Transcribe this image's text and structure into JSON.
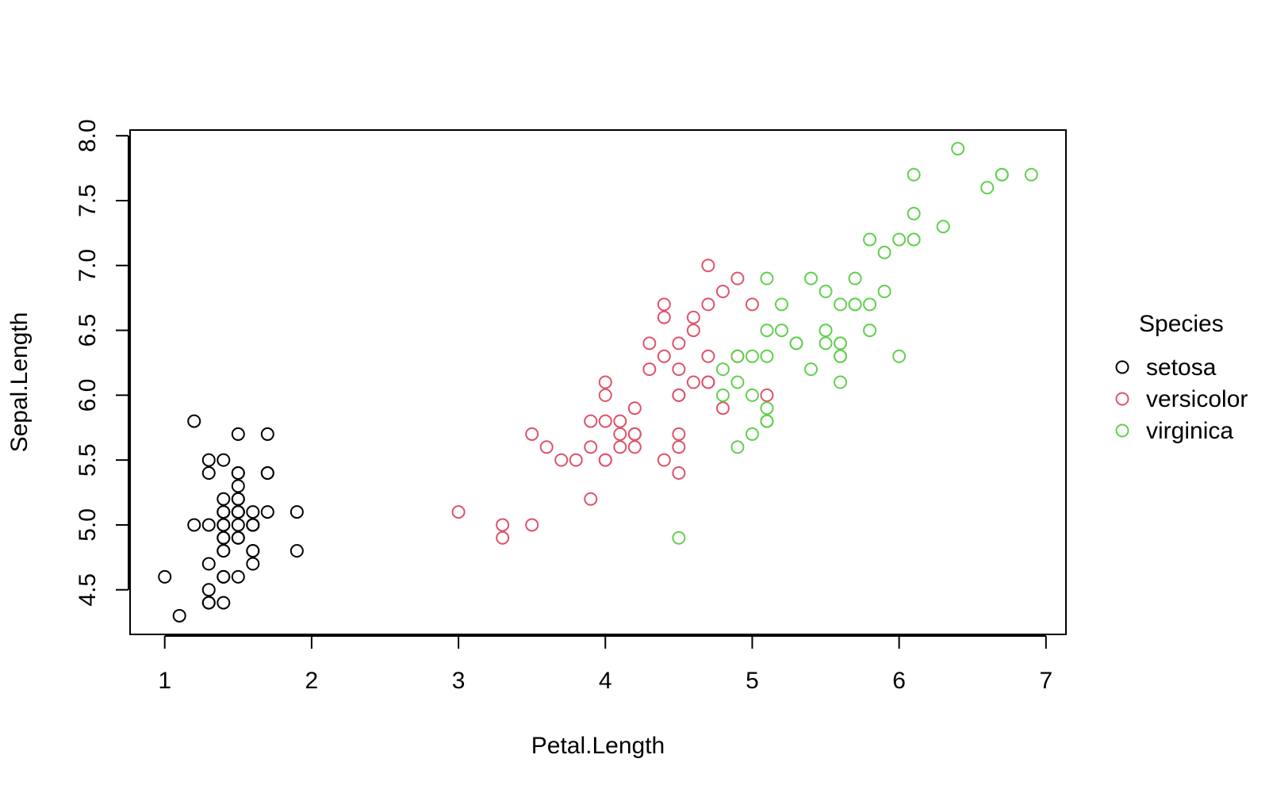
{
  "chart_data": {
    "type": "scatter",
    "xlabel": "Petal.Length",
    "ylabel": "Sepal.Length",
    "legend_title": "Species",
    "legend_position": "right",
    "xlim": [
      0.764,
      7.136
    ],
    "ylim": [
      4.156,
      8.044
    ],
    "xticks": [
      1,
      2,
      3,
      4,
      5,
      6,
      7
    ],
    "yticks": [
      4.5,
      {
        "value": 5,
        "label": "5.0"
      },
      5.5,
      {
        "value": 6,
        "label": "6.0"
      },
      6.5,
      {
        "value": 7,
        "label": "7.0"
      },
      7.5,
      {
        "value": 8,
        "label": "8.0"
      }
    ],
    "series": [
      {
        "name": "setosa",
        "color": "#000000",
        "x": [
          1.4,
          1.4,
          1.3,
          1.5,
          1.4,
          1.7,
          1.4,
          1.5,
          1.4,
          1.5,
          1.5,
          1.6,
          1.4,
          1.1,
          1.2,
          1.5,
          1.3,
          1.4,
          1.7,
          1.5,
          1.7,
          1.5,
          1.0,
          1.7,
          1.9,
          1.6,
          1.6,
          1.5,
          1.4,
          1.6,
          1.6,
          1.5,
          1.5,
          1.4,
          1.5,
          1.2,
          1.3,
          1.4,
          1.3,
          1.5,
          1.3,
          1.3,
          1.3,
          1.6,
          1.9,
          1.4,
          1.6,
          1.4,
          1.5,
          1.4
        ],
        "values": [
          5.1,
          4.9,
          4.7,
          4.6,
          5.0,
          5.4,
          4.6,
          5.0,
          4.4,
          4.9,
          5.4,
          4.8,
          4.8,
          4.3,
          5.8,
          5.7,
          5.4,
          5.1,
          5.7,
          5.1,
          5.4,
          5.1,
          4.6,
          5.1,
          4.8,
          5.0,
          5.0,
          5.2,
          5.2,
          4.7,
          4.8,
          5.4,
          5.2,
          5.5,
          4.9,
          5.0,
          5.5,
          4.9,
          4.4,
          5.1,
          5.0,
          4.5,
          4.4,
          5.0,
          5.1,
          4.8,
          5.1,
          4.6,
          5.3,
          5.0
        ]
      },
      {
        "name": "versicolor",
        "color": "#DF536B",
        "x": [
          4.7,
          4.5,
          4.9,
          4.0,
          4.6,
          4.5,
          4.7,
          3.3,
          4.6,
          3.9,
          3.5,
          4.2,
          4.0,
          4.7,
          3.6,
          4.4,
          4.5,
          4.1,
          4.5,
          3.9,
          4.8,
          4.0,
          4.9,
          4.7,
          4.3,
          4.4,
          4.8,
          5.0,
          4.5,
          3.5,
          3.8,
          3.7,
          3.9,
          5.1,
          4.5,
          4.5,
          4.7,
          4.4,
          4.1,
          4.0,
          4.4,
          4.6,
          4.0,
          3.3,
          4.2,
          4.2,
          4.2,
          4.3,
          3.0,
          4.1
        ],
        "values": [
          7.0,
          6.4,
          6.9,
          5.5,
          6.5,
          5.7,
          6.3,
          4.9,
          6.6,
          5.2,
          5.0,
          5.9,
          6.0,
          6.1,
          5.6,
          6.7,
          5.6,
          5.8,
          6.2,
          5.6,
          5.9,
          6.1,
          6.3,
          6.1,
          6.4,
          6.6,
          6.8,
          6.7,
          6.0,
          5.7,
          5.5,
          5.5,
          5.8,
          6.0,
          5.4,
          6.0,
          6.7,
          6.3,
          5.6,
          5.5,
          5.5,
          6.1,
          5.8,
          5.0,
          5.6,
          5.7,
          5.7,
          6.2,
          5.1,
          5.7
        ]
      },
      {
        "name": "virginica",
        "color": "#61D04F",
        "x": [
          6.0,
          5.1,
          5.9,
          5.6,
          5.8,
          6.6,
          4.5,
          6.3,
          5.8,
          6.1,
          5.1,
          5.3,
          5.5,
          5.0,
          5.1,
          5.3,
          5.5,
          6.7,
          6.9,
          5.0,
          5.7,
          4.9,
          6.7,
          4.9,
          5.7,
          6.0,
          4.8,
          4.9,
          5.6,
          5.8,
          6.1,
          6.4,
          5.6,
          5.1,
          5.6,
          6.1,
          5.6,
          5.5,
          4.8,
          5.4,
          5.6,
          5.1,
          5.1,
          5.9,
          5.7,
          5.2,
          5.0,
          5.2,
          5.4,
          5.1
        ],
        "values": [
          6.3,
          5.8,
          7.1,
          6.3,
          6.5,
          7.6,
          4.9,
          7.3,
          6.7,
          7.2,
          6.5,
          6.4,
          6.8,
          5.7,
          5.8,
          6.4,
          6.5,
          7.7,
          7.7,
          6.0,
          6.9,
          5.6,
          7.7,
          6.3,
          6.7,
          7.2,
          6.2,
          6.1,
          6.4,
          7.2,
          7.4,
          7.9,
          6.4,
          6.3,
          6.1,
          7.7,
          6.3,
          6.4,
          6.0,
          6.9,
          6.7,
          6.9,
          5.8,
          6.8,
          6.7,
          6.7,
          6.3,
          6.5,
          6.2,
          5.9
        ]
      }
    ]
  }
}
